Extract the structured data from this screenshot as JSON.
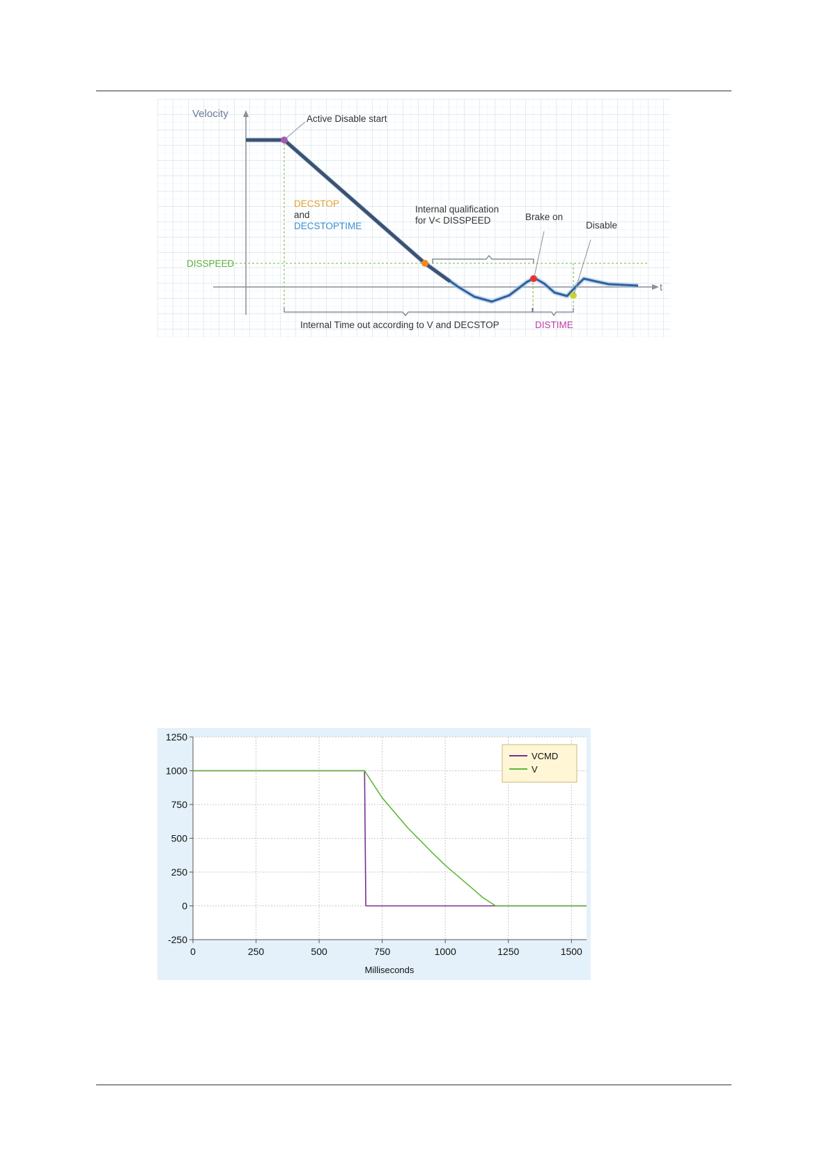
{
  "figure1": {
    "y_axis_label": "Velocity",
    "x_axis_label": "t",
    "active_disable_label": "Active Disable start",
    "decstop_label": "DECSTOP",
    "and_label": "and",
    "decstoptime_label": "DECSTOPTIME",
    "qualification_line1": "Internal qualification",
    "qualification_line2": "for V< DISSPEED",
    "brake_label": "Brake on",
    "disable_label": "Disable",
    "disspeed_label": "DISSPEED",
    "timeout_label": "Internal Time out according to V and DECSTOP",
    "distime_label": "DISTIME",
    "colors": {
      "curve": "#2f5f9e",
      "active_marker": "#a35bb5",
      "disspeed_marker": "#f08a24",
      "brake_marker": "#e8352a",
      "disable_marker": "#c9d334",
      "decstop": "#e0a030",
      "decstoptime": "#3a8fd0",
      "disspeed": "#5fad3b",
      "distime": "#c03aa0"
    }
  },
  "chart_data": {
    "type": "line",
    "xlabel": "Milliseconds",
    "ylabel": "",
    "xlim": [
      0,
      1560
    ],
    "ylim": [
      -250,
      1250
    ],
    "xticks": [
      0,
      250,
      500,
      750,
      1000,
      1250,
      1500
    ],
    "yticks": [
      -250,
      0,
      250,
      500,
      750,
      1000,
      1250
    ],
    "grid": true,
    "legend_position": "top-right",
    "series": [
      {
        "name": "VCMD",
        "color": "#7b2d8e",
        "x": [
          0,
          680,
          680,
          685,
          1560
        ],
        "y": [
          1000,
          1000,
          1000,
          0,
          0
        ]
      },
      {
        "name": "V",
        "color": "#5cb83a",
        "x": [
          0,
          680,
          750,
          850,
          950,
          1000,
          1050,
          1100,
          1150,
          1200,
          1250,
          1560
        ],
        "y": [
          1000,
          1000,
          800,
          580,
          390,
          300,
          220,
          140,
          60,
          0,
          0,
          0
        ]
      }
    ]
  }
}
